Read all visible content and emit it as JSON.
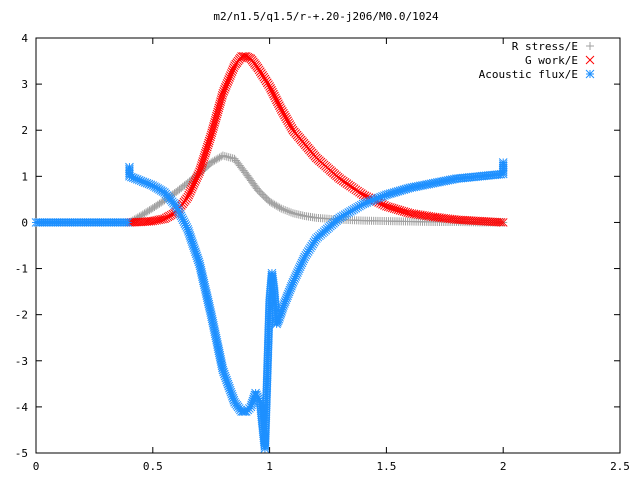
{
  "chart_data": {
    "type": "scatter",
    "title": "m2/n1.5/q1.5/r-+.20-j206/M0.0/1024",
    "xlabel": "",
    "ylabel": "",
    "xlim": [
      0,
      2.5
    ],
    "ylim": [
      -5,
      4
    ],
    "xticks": [
      "0",
      "0.5",
      "1",
      "1.5",
      "2",
      "2.5"
    ],
    "yticks": [
      "4",
      "3",
      "2",
      "1",
      "0",
      "-1",
      "-2",
      "-3",
      "-4",
      "-5"
    ],
    "grid": false,
    "legend_position": "top-right",
    "series": [
      {
        "name": "R stress/E",
        "color": "#a0a0a0",
        "marker": "plus",
        "x": [
          0.4,
          0.45,
          0.5,
          0.55,
          0.6,
          0.65,
          0.7,
          0.75,
          0.8,
          0.85,
          0.9,
          0.95,
          1.0,
          1.05,
          1.1,
          1.15,
          1.2,
          1.3,
          1.4,
          1.5,
          1.6,
          1.7,
          1.8,
          1.9,
          2.0
        ],
        "y": [
          0.0,
          0.15,
          0.31,
          0.48,
          0.66,
          0.86,
          1.07,
          1.3,
          1.45,
          1.38,
          1.05,
          0.7,
          0.45,
          0.3,
          0.2,
          0.14,
          0.1,
          0.06,
          0.04,
          0.03,
          0.02,
          0.01,
          0.01,
          0.0,
          0.0
        ]
      },
      {
        "name": "G work/E",
        "color": "#ff0000",
        "marker": "cross",
        "x": [
          0.4,
          0.45,
          0.5,
          0.55,
          0.6,
          0.65,
          0.7,
          0.75,
          0.8,
          0.85,
          0.88,
          0.9,
          0.92,
          0.95,
          1.0,
          1.05,
          1.1,
          1.2,
          1.3,
          1.4,
          1.5,
          1.6,
          1.7,
          1.8,
          1.9,
          2.0
        ],
        "y": [
          0.0,
          0.01,
          0.03,
          0.08,
          0.22,
          0.55,
          1.1,
          1.9,
          2.8,
          3.4,
          3.6,
          3.6,
          3.55,
          3.35,
          2.95,
          2.45,
          2.0,
          1.4,
          0.95,
          0.6,
          0.35,
          0.2,
          0.12,
          0.06,
          0.03,
          0.0
        ]
      },
      {
        "name": "Acoustic flux/E",
        "color": "#1e90ff",
        "marker": "star",
        "x": [
          0.4,
          0.4,
          0.45,
          0.5,
          0.55,
          0.6,
          0.65,
          0.7,
          0.75,
          0.8,
          0.85,
          0.88,
          0.9,
          0.92,
          0.94,
          0.96,
          0.98,
          1.0,
          1.01,
          1.02,
          1.03,
          1.04,
          1.06,
          1.1,
          1.15,
          1.2,
          1.3,
          1.4,
          1.5,
          1.6,
          1.7,
          1.8,
          1.9,
          2.0,
          2.0
        ],
        "y": [
          1.2,
          1.0,
          0.9,
          0.8,
          0.65,
          0.35,
          -0.15,
          -0.9,
          -2.0,
          -3.2,
          -3.9,
          -4.1,
          -4.1,
          -4.0,
          -3.7,
          -3.9,
          -4.9,
          -1.7,
          -1.1,
          -1.5,
          -2.2,
          -2.1,
          -1.8,
          -1.3,
          -0.75,
          -0.35,
          0.1,
          0.4,
          0.6,
          0.75,
          0.85,
          0.95,
          1.0,
          1.05,
          1.3
        ]
      }
    ]
  }
}
